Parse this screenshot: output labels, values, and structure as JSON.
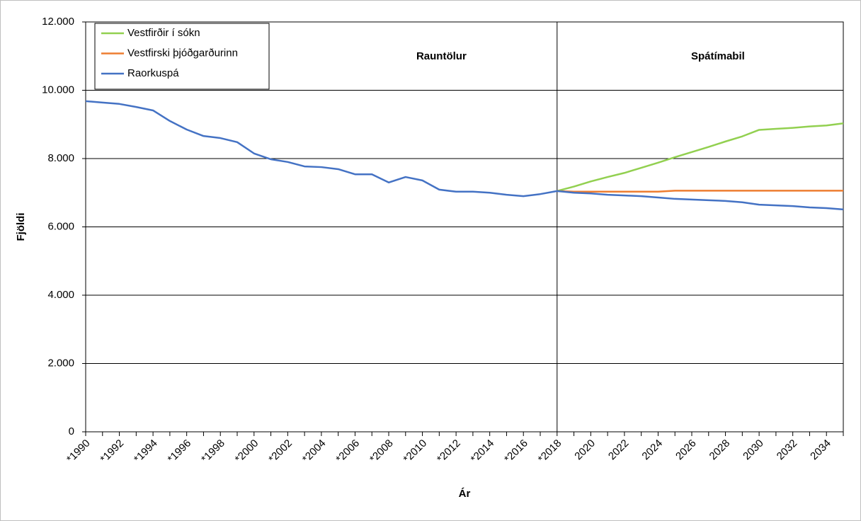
{
  "chart_data": {
    "type": "line",
    "title_left": "Rauntölur",
    "title_right": "Spátímabil",
    "x_label": "Ár",
    "y_label": "Fjöldi",
    "categories": [
      "*1990",
      null,
      "*1992",
      null,
      "*1994",
      null,
      "*1996",
      null,
      "*1998",
      null,
      "*2000",
      null,
      "*2002",
      null,
      "*2004",
      null,
      "*2006",
      null,
      "*2008",
      null,
      "*2010",
      null,
      "*2012",
      null,
      "*2014",
      null,
      "*2016",
      null,
      "*2018",
      null,
      "2020",
      null,
      "2022",
      null,
      "2024",
      null,
      "2026",
      null,
      "2028",
      null,
      "2030",
      null,
      "2032",
      null,
      "2034",
      null
    ],
    "series": [
      {
        "name": "Vestfirðir í sókn",
        "color": "#92d050",
        "values": [
          null,
          null,
          null,
          null,
          null,
          null,
          null,
          null,
          null,
          null,
          null,
          null,
          null,
          null,
          null,
          null,
          null,
          null,
          null,
          null,
          null,
          null,
          null,
          null,
          null,
          null,
          null,
          null,
          7050,
          7180,
          7330,
          7460,
          7580,
          7730,
          7880,
          8040,
          8190,
          8340,
          8500,
          8650,
          8840,
          8870,
          8900,
          8940,
          8970,
          9030
        ]
      },
      {
        "name": "Vestfirski þjóðgarðurinn",
        "color": "#ed7d31",
        "values": [
          null,
          null,
          null,
          null,
          null,
          null,
          null,
          null,
          null,
          null,
          null,
          null,
          null,
          null,
          null,
          null,
          null,
          null,
          null,
          null,
          null,
          null,
          null,
          null,
          null,
          null,
          null,
          null,
          7050,
          7030,
          7030,
          7030,
          7030,
          7030,
          7030,
          7060,
          7060,
          7060,
          7060,
          7060,
          7060,
          7060,
          7060,
          7060,
          7060,
          7060
        ]
      },
      {
        "name": "Raorkuspá",
        "color": "#4472c4",
        "values": [
          9680,
          9640,
          9600,
          9510,
          9410,
          9100,
          8850,
          8660,
          8600,
          8480,
          8150,
          7980,
          7900,
          7770,
          7750,
          7690,
          7540,
          7540,
          7300,
          7460,
          7360,
          7090,
          7030,
          7030,
          7000,
          6940,
          6900,
          6960,
          7050,
          7000,
          6980,
          6940,
          6920,
          6900,
          6860,
          6820,
          6800,
          6780,
          6760,
          6720,
          6650,
          6630,
          6610,
          6570,
          6550,
          6510
        ]
      }
    ],
    "ylim": [
      0,
      12000
    ],
    "yticks": [
      0,
      {
        "value": 2000,
        "label": "2.000"
      },
      {
        "value": 4000,
        "label": "4.000"
      },
      {
        "value": 6000,
        "label": "6.000"
      },
      {
        "value": 8000,
        "label": "8.000"
      },
      {
        "value": 10000,
        "label": "10.000"
      },
      {
        "value": 12000,
        "label": "12.000"
      }
    ],
    "grid": true,
    "legend": "top-left"
  }
}
